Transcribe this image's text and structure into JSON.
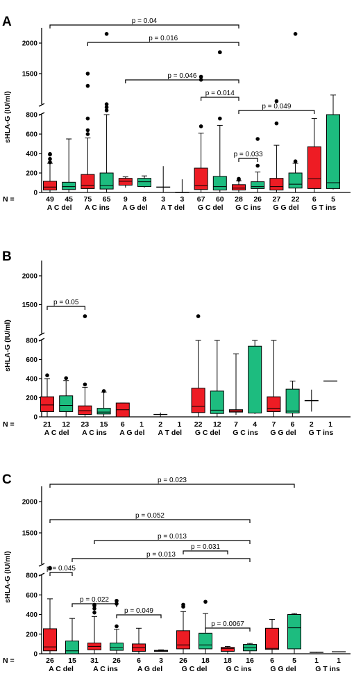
{
  "colors": {
    "red": "#ee1c24",
    "green": "#1dbc7f",
    "neutral": "#ffffff",
    "stroke": "#000000"
  },
  "shared": {
    "ylabel": "sHLA-G (IU/ml)",
    "n_label": "N =",
    "yticks": [
      0,
      200,
      400,
      600,
      800,
      1500,
      2000
    ],
    "groups": [
      "A C del",
      "A C ins",
      "A G del",
      "A T del",
      "G C del",
      "G C ins",
      "G G del",
      "G T ins"
    ]
  },
  "chart_data": [
    {
      "panel": "A",
      "type": "box",
      "ylabel": "sHLA-G (IU/ml)",
      "y_axis_break": [
        800,
        1000
      ],
      "series_order": [
        "red",
        "green"
      ],
      "n": [
        49,
        45,
        75,
        65,
        9,
        8,
        3,
        3,
        67,
        60,
        28,
        26,
        27,
        22,
        6,
        5
      ],
      "boxes": [
        {
          "min": 0,
          "q1": 25,
          "median": 55,
          "q3": 115,
          "max": 300,
          "outliers": [
            310,
            345,
            390,
            395
          ],
          "color": "red"
        },
        {
          "min": 0,
          "q1": 30,
          "median": 60,
          "q3": 105,
          "max": 550,
          "outliers": [],
          "color": "green"
        },
        {
          "min": 0,
          "q1": 40,
          "median": 75,
          "q3": 185,
          "max": 560,
          "outliers": [
            600,
            640,
            760,
            1300,
            1500
          ],
          "color": "red"
        },
        {
          "min": 0,
          "q1": 35,
          "median": 70,
          "q3": 200,
          "max": 800,
          "outliers": [
            900,
            950,
            1000,
            2150
          ],
          "color": "green"
        },
        {
          "min": 50,
          "q1": 75,
          "median": 115,
          "q3": 145,
          "max": 160,
          "outliers": [],
          "color": "red"
        },
        {
          "min": 50,
          "q1": 60,
          "median": 110,
          "q3": 145,
          "max": 170,
          "outliers": [],
          "color": "green"
        },
        {
          "min": 0,
          "q1": 55,
          "median": 55,
          "q3": 55,
          "max": 270,
          "outliers": [],
          "color": "none"
        },
        {
          "min": 0,
          "q1": 0,
          "median": 0,
          "q3": 0,
          "max": 135,
          "outliers": [],
          "color": "none"
        },
        {
          "min": 0,
          "q1": 30,
          "median": 70,
          "q3": 250,
          "max": 610,
          "outliers": [
            680,
            1400,
            1450
          ],
          "color": "red"
        },
        {
          "min": 0,
          "q1": 25,
          "median": 60,
          "q3": 165,
          "max": 690,
          "outliers": [
            760,
            1850,
            1850
          ],
          "color": "green"
        },
        {
          "min": 0,
          "q1": 25,
          "median": 45,
          "q3": 80,
          "max": 120,
          "outliers": [
            130,
            140
          ],
          "color": "red"
        },
        {
          "min": 0,
          "q1": 40,
          "median": 60,
          "q3": 110,
          "max": 210,
          "outliers": [
            275,
            550
          ],
          "color": "green"
        },
        {
          "min": 0,
          "q1": 25,
          "median": 60,
          "q3": 145,
          "max": 485,
          "outliers": [
            710,
            1050
          ],
          "color": "red"
        },
        {
          "min": 0,
          "q1": 45,
          "median": 85,
          "q3": 200,
          "max": 300,
          "outliers": [
            320,
            2150
          ],
          "color": "green"
        },
        {
          "min": 0,
          "q1": 40,
          "median": 140,
          "q3": 470,
          "max": 760,
          "outliers": [],
          "color": "red"
        },
        {
          "min": 30,
          "q1": 40,
          "median": 100,
          "q3": 800,
          "max": 1150,
          "outliers": [],
          "color": "green"
        }
      ],
      "comparisons": [
        {
          "from": 0,
          "to": 10,
          "label": "p = 0.04"
        },
        {
          "from": 2,
          "to": 10,
          "label": "p = 0.016"
        },
        {
          "from": 4,
          "to": 10,
          "label": "p = 0.046"
        },
        {
          "from": 8,
          "to": 10,
          "label": "p = 0.014"
        },
        {
          "from": 10,
          "to": 14,
          "label": "p = 0.049"
        },
        {
          "from": 10,
          "to": 11,
          "label": "p = 0.033"
        }
      ]
    },
    {
      "panel": "B",
      "type": "box",
      "ylabel": "sHLA-G (IU/ml)",
      "y_axis_break": [
        800,
        1000
      ],
      "series_order": [
        "red",
        "green"
      ],
      "n": [
        21,
        12,
        23,
        15,
        6,
        1,
        2,
        1,
        22,
        12,
        7,
        4,
        7,
        6,
        2,
        1
      ],
      "boxes": [
        {
          "min": 0,
          "q1": 55,
          "median": 125,
          "q3": 210,
          "max": 400,
          "outliers": [
            435
          ],
          "color": "red"
        },
        {
          "min": 0,
          "q1": 55,
          "median": 120,
          "q3": 220,
          "max": 380,
          "outliers": [
            405
          ],
          "color": "green"
        },
        {
          "min": 0,
          "q1": 25,
          "median": 65,
          "q3": 115,
          "max": 310,
          "outliers": [
            340,
            1300
          ],
          "color": "red"
        },
        {
          "min": 0,
          "q1": 30,
          "median": 50,
          "q3": 90,
          "max": 260,
          "outliers": [
            270
          ],
          "color": "green"
        },
        {
          "min": 0,
          "q1": 0,
          "median": 75,
          "q3": 145,
          "max": 145,
          "outliers": [],
          "color": "red"
        },
        null,
        {
          "min": 0,
          "q1": 25,
          "median": 25,
          "q3": 25,
          "max": 45,
          "outliers": [],
          "color": "none"
        },
        null,
        {
          "min": 0,
          "q1": 45,
          "median": 110,
          "q3": 300,
          "max": 800,
          "outliers": [
            1300
          ],
          "color": "red"
        },
        {
          "min": 0,
          "q1": 35,
          "median": 70,
          "q3": 270,
          "max": 800,
          "outliers": [],
          "color": "green"
        },
        {
          "min": 20,
          "q1": 50,
          "median": 60,
          "q3": 75,
          "max": 660,
          "outliers": [],
          "color": "red"
        },
        {
          "min": 30,
          "q1": 40,
          "median": 40,
          "q3": 740,
          "max": 800,
          "outliers": [],
          "color": "green"
        },
        {
          "min": 0,
          "q1": 55,
          "median": 90,
          "q3": 210,
          "max": 800,
          "outliers": [],
          "color": "red"
        },
        {
          "min": 0,
          "q1": 40,
          "median": 60,
          "q3": 290,
          "max": 375,
          "outliers": [],
          "color": "green"
        },
        {
          "min": 55,
          "q1": 170,
          "median": 170,
          "q3": 170,
          "max": 285,
          "outliers": [],
          "color": "none"
        },
        {
          "min": 375,
          "q1": 375,
          "median": 375,
          "q3": 375,
          "max": 375,
          "outliers": [],
          "color": "none"
        }
      ],
      "comparisons": [
        {
          "from": 0,
          "to": 2,
          "label": "p = 0.05"
        }
      ]
    },
    {
      "panel": "C",
      "type": "box",
      "ylabel": "sHLA-G (IU/ml)",
      "y_axis_break": [
        800,
        1000
      ],
      "series_order": [
        "red",
        "green"
      ],
      "n": [
        26,
        15,
        31,
        26,
        6,
        3,
        26,
        18,
        18,
        16,
        6,
        5,
        1,
        1
      ],
      "group_labels": [
        "A C del",
        "A C ins",
        "A G del",
        "G C del",
        "G C ins",
        "G G del",
        "G T ins"
      ],
      "boxes": [
        {
          "min": 0,
          "q1": 30,
          "median": 70,
          "q3": 255,
          "max": 560,
          "outliers": [
            930,
            940
          ],
          "color": "red"
        },
        {
          "min": 0,
          "q1": 0,
          "median": 30,
          "q3": 130,
          "max": 360,
          "outliers": [],
          "color": "green"
        },
        {
          "min": 0,
          "q1": 40,
          "median": 75,
          "q3": 110,
          "max": 380,
          "outliers": [
            420,
            460,
            490,
            500
          ],
          "color": "red"
        },
        {
          "min": 0,
          "q1": 35,
          "median": 60,
          "q3": 110,
          "max": 250,
          "outliers": [
            280,
            510,
            540
          ],
          "color": "green"
        },
        {
          "min": 0,
          "q1": 25,
          "median": 60,
          "q3": 100,
          "max": 260,
          "outliers": [],
          "color": "red"
        },
        {
          "min": 25,
          "q1": 30,
          "median": 30,
          "q3": 35,
          "max": 40,
          "outliers": [],
          "color": "red"
        },
        {
          "min": 0,
          "q1": 50,
          "median": 90,
          "q3": 235,
          "max": 430,
          "outliers": [
            480,
            500
          ],
          "color": "red"
        },
        {
          "min": 0,
          "q1": 50,
          "median": 90,
          "q3": 210,
          "max": 410,
          "outliers": [
            530
          ],
          "color": "green"
        },
        {
          "min": 0,
          "q1": 25,
          "median": 55,
          "q3": 65,
          "max": 75,
          "outliers": [],
          "color": "red"
        },
        {
          "min": 0,
          "q1": 30,
          "median": 60,
          "q3": 95,
          "max": 105,
          "outliers": [],
          "color": "green"
        },
        {
          "min": 0,
          "q1": 45,
          "median": 55,
          "q3": 260,
          "max": 350,
          "outliers": [],
          "color": "red"
        },
        {
          "min": 0,
          "q1": 50,
          "median": 265,
          "q3": 400,
          "max": 410,
          "outliers": [],
          "color": "green"
        },
        {
          "min": 10,
          "q1": 15,
          "median": 15,
          "q3": 15,
          "max": 20,
          "outliers": [],
          "color": "none"
        },
        {
          "min": 15,
          "q1": 20,
          "median": 20,
          "q3": 20,
          "max": 25,
          "outliers": [],
          "color": "none"
        }
      ],
      "comparisons": [
        {
          "from": 0,
          "to": 11,
          "label": "p = 0.023"
        },
        {
          "from": 0,
          "to": 9,
          "label": "p = 0.052"
        },
        {
          "from": 2,
          "to": 9,
          "label": "p = 0.013"
        },
        {
          "from": 1,
          "to": 9,
          "label": "p = 0.013"
        },
        {
          "from": 6,
          "to": 8,
          "label": "p = 0.031"
        },
        {
          "from": 0,
          "to": 1,
          "label": "p = 0.045"
        },
        {
          "from": 1,
          "to": 3,
          "label": "p = 0.022"
        },
        {
          "from": 3,
          "to": 5,
          "label": "p = 0.049"
        },
        {
          "from": 7,
          "to": 9,
          "label": "p = 0.0067"
        }
      ]
    }
  ]
}
